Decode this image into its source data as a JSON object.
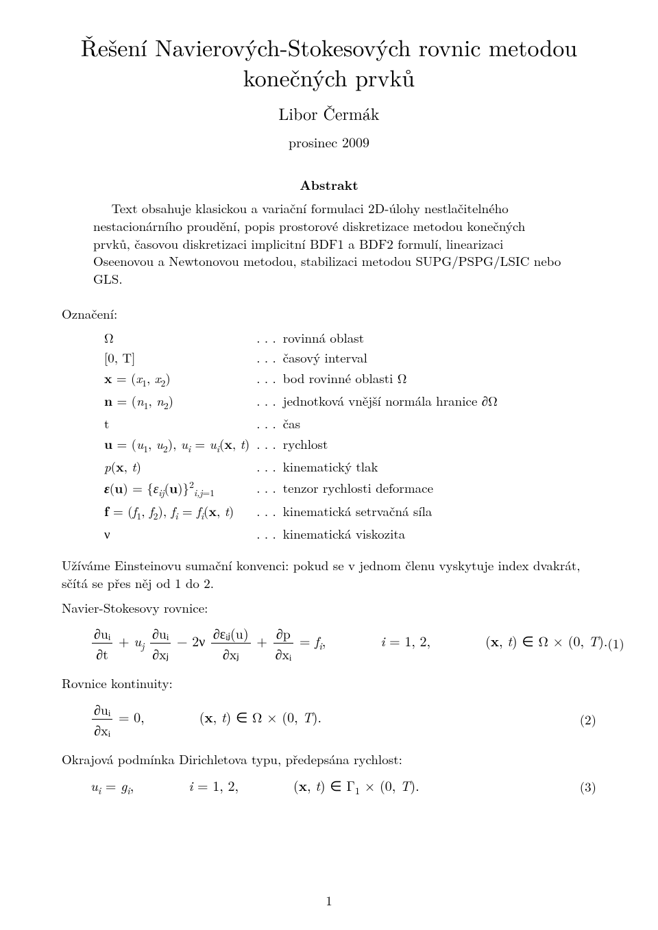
{
  "title": "Řešení Navierových-Stokesových rovnic metodou konečných prvků",
  "author": "Libor Čermák",
  "date": "prosinec 2009",
  "abstract": {
    "heading": "Abstrakt",
    "body": "Text obsahuje klasickou a variační formulaci 2D-úlohy nestlačitelného nestacionárního proudění, popis prostorové diskretizace metodou konečných prvků, časovou diskretizaci implicitní BDF1 a BDF2 formulí, linearizaci Oseenovou a Newtonovou metodou, stabilizaci metodou SUPG/PSPG/LSIC nebo GLS."
  },
  "notation": {
    "label": "Označení:",
    "dots": ". . .",
    "rows": [
      {
        "sym": "Ω",
        "desc": "rovinná oblast"
      },
      {
        "sym": "[0, T]",
        "desc": "časový interval"
      },
      {
        "sym": "x = (x₁, x₂)",
        "desc": "bod rovinné oblasti Ω"
      },
      {
        "sym": "n = (n₁, n₂)",
        "desc": "jednotková vnější normála hranice ∂Ω"
      },
      {
        "sym": "t",
        "desc": "čas"
      },
      {
        "sym": "u = (u₁, u₂), uᵢ = uᵢ(x, t)",
        "desc": "rychlost"
      },
      {
        "sym": "p(x, t)",
        "desc": "kinematický tlak"
      },
      {
        "sym": "ε(u) = {εᵢⱼ(u)}²ᵢ,ⱼ₌₁",
        "desc": "tenzor rychlosti deformace"
      },
      {
        "sym": "f = (f₁, f₂), fᵢ = fᵢ(x, t)",
        "desc": "kinematická setrvačná síla"
      },
      {
        "sym": "ν",
        "desc": "kinematická viskozita"
      }
    ]
  },
  "einstein_para": "Užíváme Einsteinovu sumační konvenci: pokud se v jednom členu vyskytuje index dvakrát, sčítá se přes něj od 1 do 2.",
  "ns": {
    "label": "Navier-Stokesovy rovnice:",
    "t1_num": "∂uᵢ",
    "t1_den": "∂t",
    "plus1": " + u",
    "sub_j": "j",
    "t2_num": "∂uᵢ",
    "t2_den": "∂xⱼ",
    "minus2nu": " − 2ν",
    "t3_num": "∂εᵢⱼ(u)",
    "t3_den": "∂xⱼ",
    "plus2": " + ",
    "t4_num": "∂p",
    "t4_den": "∂xᵢ",
    "eq_rhs": " = fᵢ,        i = 1, 2,        (x, t) ∈ Ω × (0, T).",
    "num": "(1)"
  },
  "cont": {
    "label": "Rovnice kontinuity:",
    "t_num": "∂uᵢ",
    "t_den": "∂xᵢ",
    "rhs": " = 0,        (x, t) ∈ Ω × (0, T).",
    "num": "(2)"
  },
  "dir": {
    "label": "Okrajová podmínka Dirichletova typu, předepsána rychlost:",
    "body": "uᵢ = gᵢ,        i = 1, 2,        (x, t) ∈ Γ₁ × (0, T).",
    "num": "(3)"
  },
  "page_number": "1"
}
